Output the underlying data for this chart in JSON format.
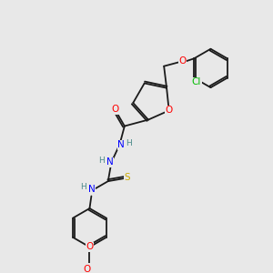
{
  "background_color": "#e8e8e8",
  "bond_color": "#1a1a1a",
  "bond_lw": 1.3,
  "atom_colors": {
    "O": "#ff0000",
    "N": "#0000ff",
    "S": "#ccaa00",
    "Cl": "#00bb00",
    "C": "#1a1a1a",
    "H": "#4a8a8a"
  },
  "font_size": 7.5
}
